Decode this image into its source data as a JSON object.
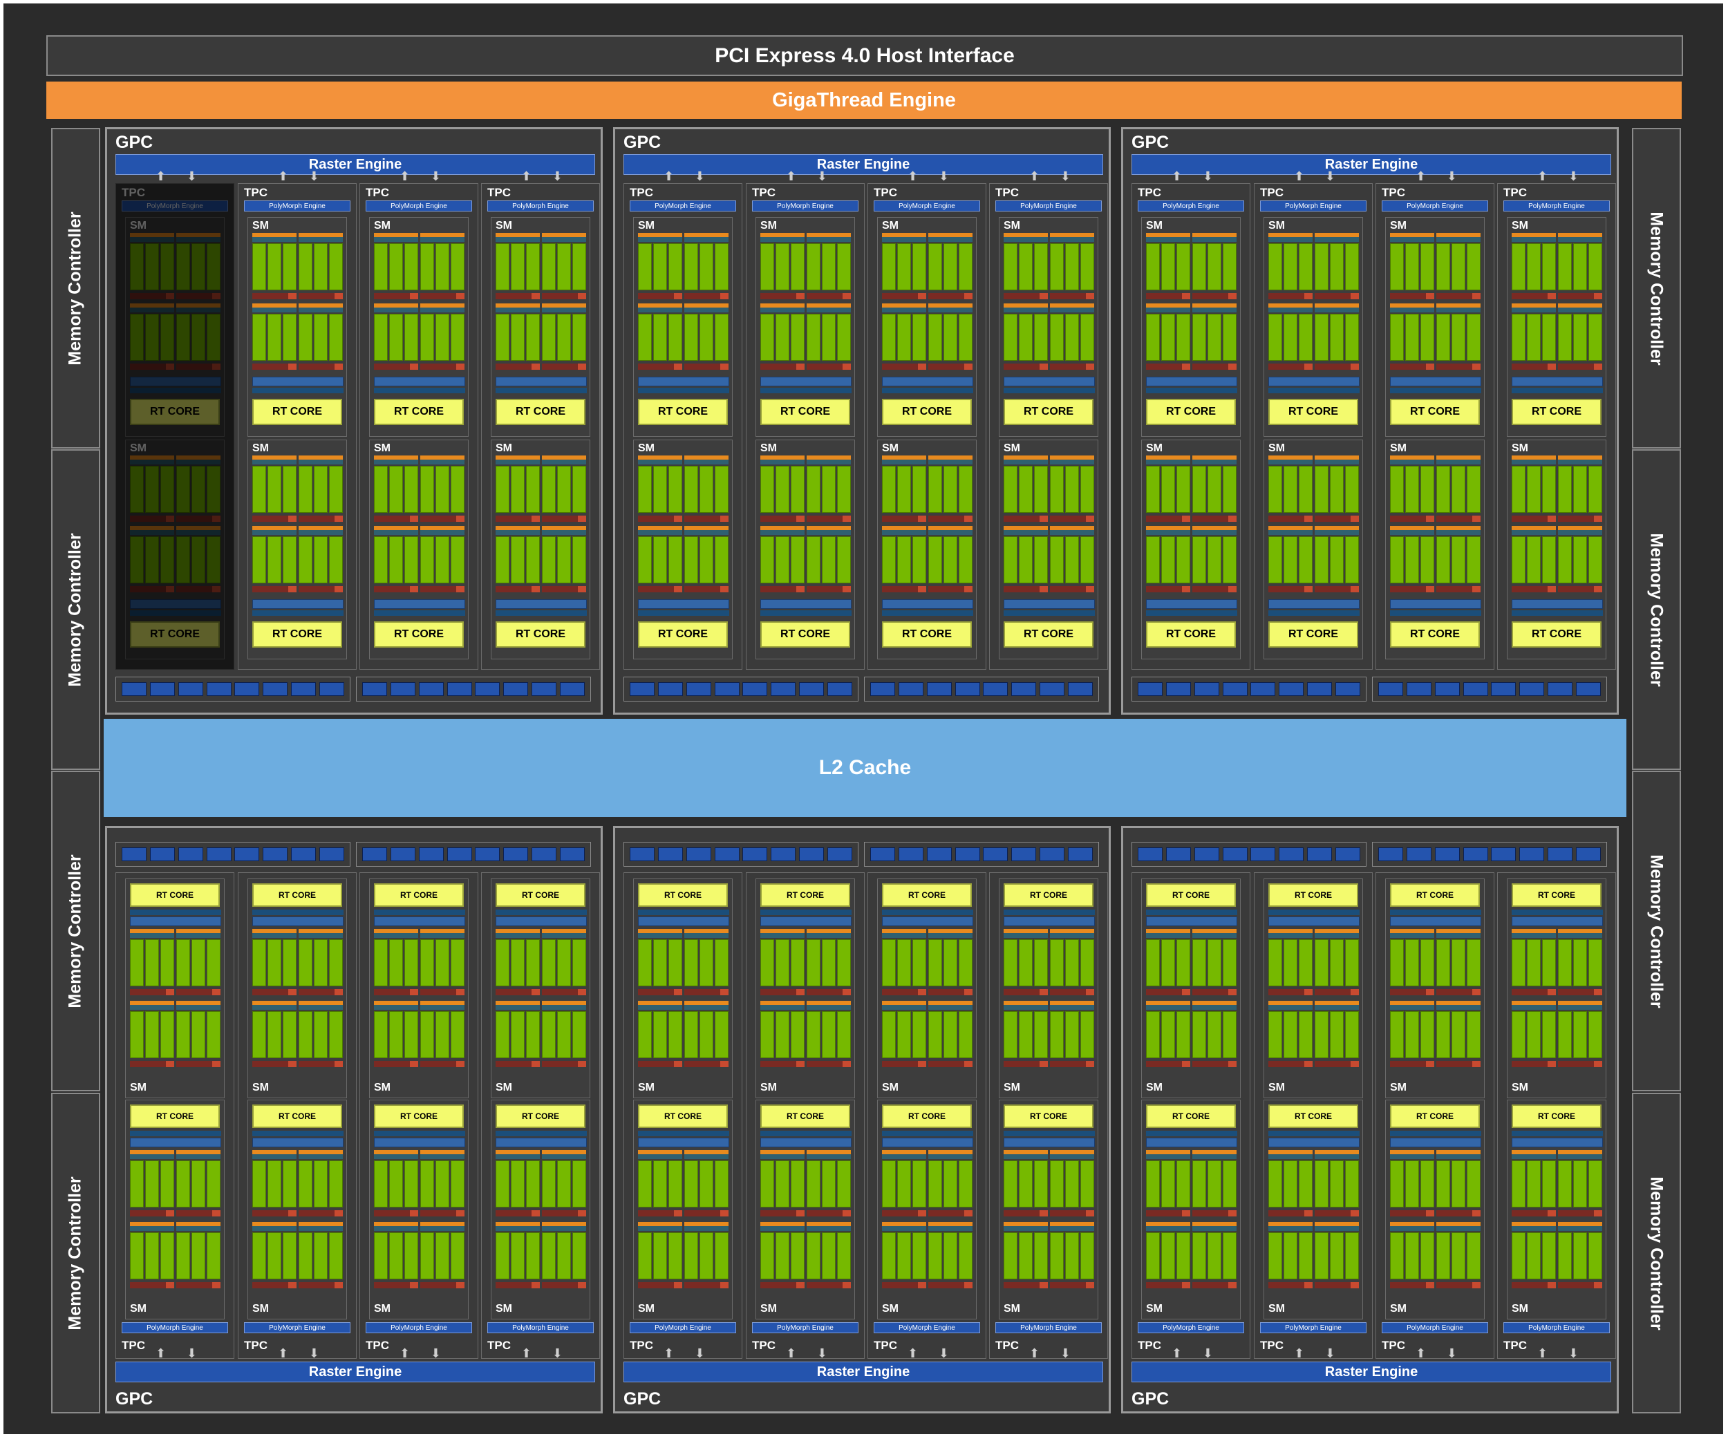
{
  "pcie": "PCI Express 4.0 Host Interface",
  "gigathread": "GigaThread Engine",
  "l2": "L2 Cache",
  "memory_controller": "Memory Controller",
  "gpc_label": "GPC",
  "raster_label": "Raster Engine",
  "tpc_label": "TPC",
  "polymorph_label": "PolyMorph Engine",
  "sm_label": "SM",
  "rt_label": "RT CORE",
  "layout": {
    "gpc_count": 6,
    "tpcs_per_gpc": 4,
    "sms_per_tpc": 2,
    "memory_controllers": 8
  },
  "colors": {
    "background": "#2b2b2b",
    "gigathread": "#f3923b",
    "l2": "#6dade0",
    "raster": "#2454ae",
    "rt_core": "#f3fa6e",
    "cuda_core": "#76b900"
  }
}
